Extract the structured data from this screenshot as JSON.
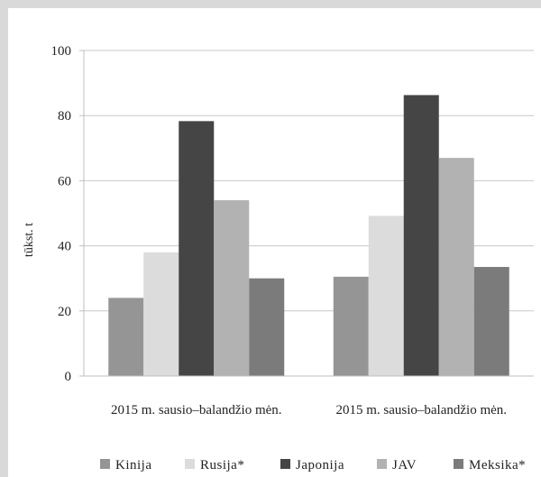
{
  "chart_data": {
    "type": "bar",
    "categories": [
      "2015 m. sausio–balandžio mėn.",
      "2015 m. sausio–balandžio mėn."
    ],
    "ylabel": "tūkst. t",
    "ylim": [
      0,
      100
    ],
    "yticks": [
      "0",
      "20",
      "40",
      "60",
      "80",
      "100"
    ],
    "grid": true,
    "legend_position": "bottom",
    "series": [
      {
        "name": "Kinija",
        "color": "#959595",
        "values": [
          24,
          30.5
        ]
      },
      {
        "name": "Rusija*",
        "color": "#dcdcdd",
        "values": [
          38,
          49.2
        ]
      },
      {
        "name": "Japonija",
        "color": "#454545",
        "values": [
          78.3,
          86.3
        ]
      },
      {
        "name": "JAV",
        "color": "#b2b2b2",
        "values": [
          54,
          67
        ]
      },
      {
        "name": "Meksika*",
        "color": "#7b7b7c",
        "values": [
          30,
          33.5
        ]
      }
    ]
  }
}
